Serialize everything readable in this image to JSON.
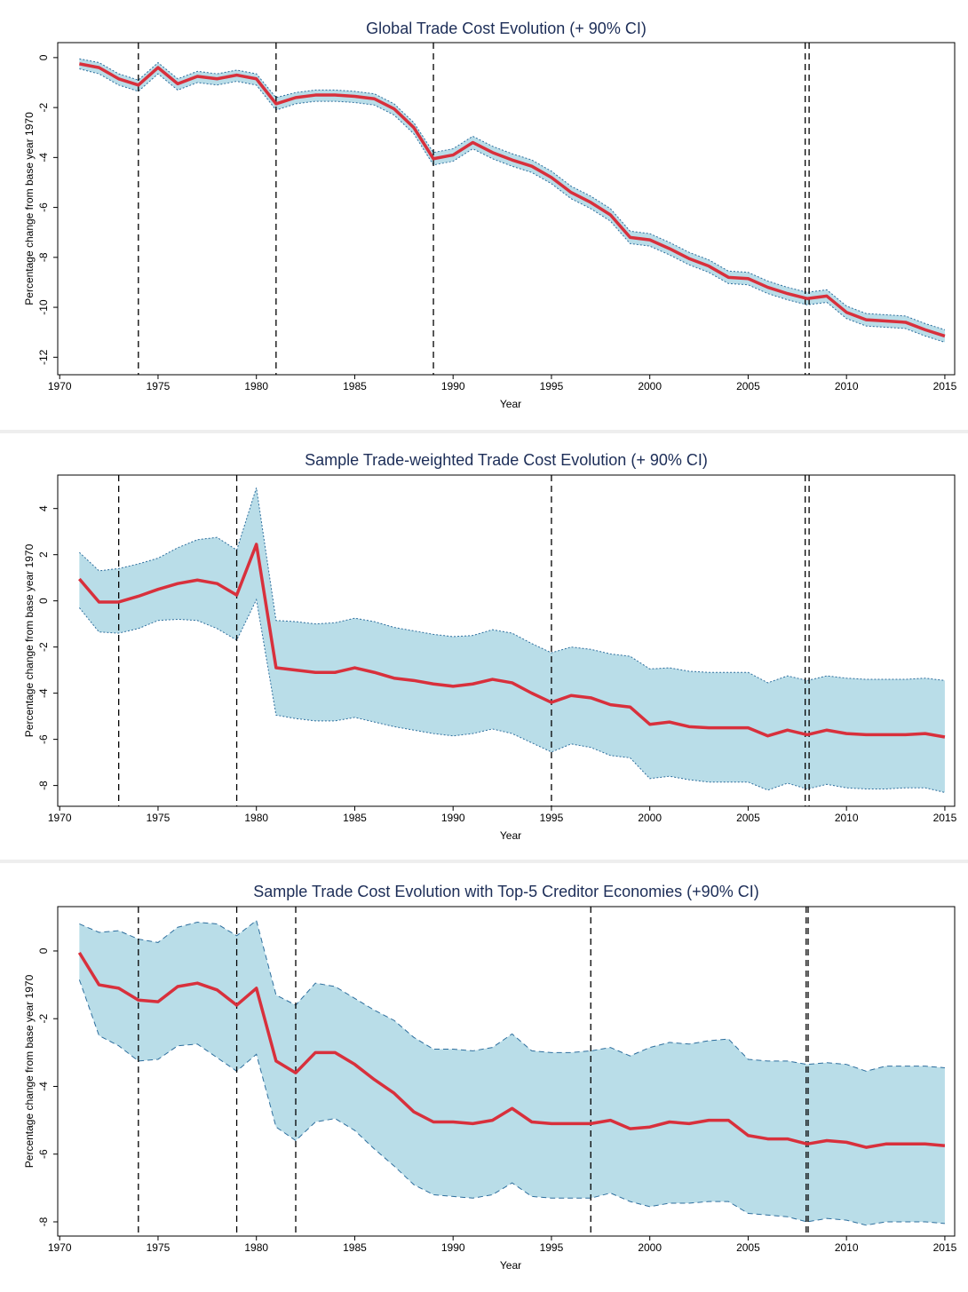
{
  "chart_data": [
    {
      "type": "line",
      "title": "Global Trade Cost Evolution (+ 90% CI)",
      "x_label": "Year",
      "y_label": "Percentage change from base year 1970",
      "x": [
        1971,
        1972,
        1973,
        1974,
        1975,
        1976,
        1977,
        1978,
        1979,
        1980,
        1981,
        1982,
        1983,
        1984,
        1985,
        1986,
        1987,
        1988,
        1989,
        1990,
        1991,
        1992,
        1993,
        1994,
        1995,
        1996,
        1997,
        1998,
        1999,
        2000,
        2001,
        2002,
        2003,
        2004,
        2005,
        2006,
        2007,
        2008,
        2009,
        2010,
        2011,
        2012,
        2013,
        2014,
        2015
      ],
      "values": [
        -0.25,
        -0.4,
        -0.85,
        -1.1,
        -0.4,
        -1.05,
        -0.75,
        -0.85,
        -0.7,
        -0.85,
        -1.85,
        -1.6,
        -1.5,
        -1.5,
        -1.55,
        -1.65,
        -2.05,
        -2.8,
        -4.05,
        -3.9,
        -3.4,
        -3.8,
        -4.1,
        -4.35,
        -4.8,
        -5.4,
        -5.8,
        -6.3,
        -7.2,
        -7.3,
        -7.65,
        -8.05,
        -8.35,
        -8.8,
        -8.85,
        -9.2,
        -9.45,
        -9.65,
        -9.55,
        -10.2,
        -10.5,
        -10.55,
        -10.6,
        -10.9,
        -11.15
      ],
      "ci_upper": [
        -0.05,
        -0.2,
        -0.65,
        -0.9,
        -0.2,
        -0.85,
        -0.55,
        -0.65,
        -0.5,
        -0.65,
        -1.6,
        -1.4,
        -1.3,
        -1.3,
        -1.35,
        -1.45,
        -1.85,
        -2.6,
        -3.8,
        -3.65,
        -3.15,
        -3.55,
        -3.85,
        -4.1,
        -4.55,
        -5.15,
        -5.55,
        -6.05,
        -6.95,
        -7.05,
        -7.4,
        -7.8,
        -8.1,
        -8.55,
        -8.6,
        -8.95,
        -9.2,
        -9.4,
        -9.3,
        -9.95,
        -10.25,
        -10.3,
        -10.35,
        -10.65,
        -10.9
      ],
      "ci_lower": [
        -0.45,
        -0.65,
        -1.1,
        -1.35,
        -0.65,
        -1.3,
        -1.0,
        -1.1,
        -0.95,
        -1.1,
        -2.1,
        -1.85,
        -1.75,
        -1.75,
        -1.8,
        -1.9,
        -2.3,
        -3.05,
        -4.3,
        -4.15,
        -3.65,
        -4.05,
        -4.35,
        -4.6,
        -5.05,
        -5.65,
        -6.05,
        -6.55,
        -7.45,
        -7.55,
        -7.9,
        -8.3,
        -8.6,
        -9.05,
        -9.1,
        -9.45,
        -9.7,
        -9.9,
        -9.8,
        -10.45,
        -10.75,
        -10.8,
        -10.85,
        -11.15,
        -11.4
      ],
      "vlines": [
        1974,
        1981,
        1989,
        2007.9,
        2008.1
      ],
      "xlim": [
        1969.9,
        2015.5
      ],
      "xticks": [
        1970,
        1975,
        1980,
        1985,
        1990,
        1995,
        2000,
        2005,
        2010,
        2015
      ],
      "ylim": [
        -12.7,
        0.6
      ],
      "yticks": [
        -12,
        -10,
        -8,
        -6,
        -4,
        -2,
        0
      ],
      "line_color": "#d8303c",
      "band_color": "#b9dde8",
      "band_edge_color": "#2e6f9e",
      "band_edge_style": "dotted"
    },
    {
      "type": "line",
      "title": "Sample Trade-weighted Trade Cost Evolution (+ 90% CI)",
      "x_label": "Year",
      "y_label": "Percentage change from base year 1970",
      "x": [
        1971,
        1972,
        1973,
        1974,
        1975,
        1976,
        1977,
        1978,
        1979,
        1980,
        1981,
        1982,
        1983,
        1984,
        1985,
        1986,
        1987,
        1988,
        1989,
        1990,
        1991,
        1992,
        1993,
        1994,
        1995,
        1996,
        1997,
        1998,
        1999,
        2000,
        2001,
        2002,
        2003,
        2004,
        2005,
        2006,
        2007,
        2008,
        2009,
        2010,
        2011,
        2012,
        2013,
        2014,
        2015
      ],
      "values": [
        0.95,
        -0.05,
        -0.05,
        0.2,
        0.5,
        0.75,
        0.9,
        0.75,
        0.25,
        2.45,
        -2.9,
        -3.0,
        -3.1,
        -3.1,
        -2.9,
        -3.1,
        -3.35,
        -3.45,
        -3.6,
        -3.7,
        -3.6,
        -3.4,
        -3.55,
        -4.0,
        -4.4,
        -4.1,
        -4.2,
        -4.5,
        -4.6,
        -5.35,
        -5.25,
        -5.45,
        -5.5,
        -5.5,
        -5.5,
        -5.85,
        -5.6,
        -5.8,
        -5.6,
        -5.75,
        -5.8,
        -5.8,
        -5.8,
        -5.75,
        -5.9
      ],
      "ci_upper": [
        2.1,
        1.3,
        1.4,
        1.6,
        1.85,
        2.3,
        2.65,
        2.75,
        2.2,
        4.9,
        -0.85,
        -0.9,
        -1.0,
        -0.95,
        -0.75,
        -0.9,
        -1.15,
        -1.3,
        -1.45,
        -1.55,
        -1.5,
        -1.25,
        -1.4,
        -1.85,
        -2.25,
        -2.0,
        -2.1,
        -2.3,
        -2.4,
        -2.95,
        -2.9,
        -3.05,
        -3.1,
        -3.1,
        -3.1,
        -3.55,
        -3.25,
        -3.45,
        -3.25,
        -3.35,
        -3.4,
        -3.4,
        -3.4,
        -3.35,
        -3.45
      ],
      "ci_lower": [
        -0.3,
        -1.35,
        -1.4,
        -1.2,
        -0.85,
        -0.8,
        -0.85,
        -1.2,
        -1.7,
        0.05,
        -4.95,
        -5.1,
        -5.2,
        -5.2,
        -5.05,
        -5.25,
        -5.45,
        -5.6,
        -5.75,
        -5.85,
        -5.75,
        -5.55,
        -5.75,
        -6.15,
        -6.55,
        -6.2,
        -6.35,
        -6.7,
        -6.8,
        -7.7,
        -7.6,
        -7.75,
        -7.85,
        -7.85,
        -7.85,
        -8.2,
        -7.9,
        -8.15,
        -7.95,
        -8.1,
        -8.15,
        -8.15,
        -8.1,
        -8.1,
        -8.3
      ],
      "vlines": [
        1973,
        1979,
        1995,
        2007.9,
        2008.1
      ],
      "xlim": [
        1969.9,
        2015.5
      ],
      "xticks": [
        1970,
        1975,
        1980,
        1985,
        1990,
        1995,
        2000,
        2005,
        2010,
        2015
      ],
      "ylim": [
        -8.9,
        5.45
      ],
      "yticks": [
        -8,
        -6,
        -4,
        -2,
        0,
        2,
        4
      ],
      "line_color": "#d8303c",
      "band_color": "#b9dde8",
      "band_edge_color": "#2e6f9e",
      "band_edge_style": "dotted"
    },
    {
      "type": "line",
      "title": "Sample Trade Cost Evolution with Top-5 Creditor Economies (+90% CI)",
      "x_label": "Year",
      "y_label": "Percentage change from base year 1970",
      "x": [
        1971,
        1972,
        1973,
        1974,
        1975,
        1976,
        1977,
        1978,
        1979,
        1980,
        1981,
        1982,
        1983,
        1984,
        1985,
        1986,
        1987,
        1988,
        1989,
        1990,
        1991,
        1992,
        1993,
        1994,
        1995,
        1996,
        1997,
        1998,
        1999,
        2000,
        2001,
        2002,
        2003,
        2004,
        2005,
        2006,
        2007,
        2008,
        2009,
        2010,
        2011,
        2012,
        2013,
        2014,
        2015
      ],
      "values": [
        -0.05,
        -1.0,
        -1.1,
        -1.45,
        -1.5,
        -1.05,
        -0.95,
        -1.15,
        -1.6,
        -1.1,
        -3.25,
        -3.6,
        -3.0,
        -3.0,
        -3.35,
        -3.8,
        -4.2,
        -4.75,
        -5.05,
        -5.05,
        -5.1,
        -5.0,
        -4.65,
        -5.05,
        -5.1,
        -5.1,
        -5.1,
        -5.0,
        -5.25,
        -5.2,
        -5.05,
        -5.1,
        -5.0,
        -5.0,
        -5.45,
        -5.55,
        -5.55,
        -5.7,
        -5.6,
        -5.65,
        -5.8,
        -5.7,
        -5.7,
        -5.7,
        -5.75
      ],
      "ci_upper": [
        0.8,
        0.55,
        0.6,
        0.35,
        0.25,
        0.7,
        0.85,
        0.8,
        0.45,
        0.9,
        -1.3,
        -1.6,
        -0.95,
        -1.05,
        -1.4,
        -1.75,
        -2.05,
        -2.55,
        -2.9,
        -2.9,
        -2.95,
        -2.85,
        -2.45,
        -2.95,
        -3.0,
        -3.0,
        -2.95,
        -2.85,
        -3.1,
        -2.85,
        -2.7,
        -2.75,
        -2.65,
        -2.6,
        -3.2,
        -3.25,
        -3.25,
        -3.35,
        -3.3,
        -3.35,
        -3.55,
        -3.4,
        -3.4,
        -3.4,
        -3.45
      ],
      "ci_lower": [
        -0.85,
        -2.5,
        -2.8,
        -3.25,
        -3.2,
        -2.8,
        -2.75,
        -3.15,
        -3.55,
        -3.05,
        -5.2,
        -5.6,
        -5.05,
        -4.95,
        -5.3,
        -5.85,
        -6.35,
        -6.9,
        -7.2,
        -7.25,
        -7.3,
        -7.2,
        -6.85,
        -7.25,
        -7.3,
        -7.3,
        -7.3,
        -7.15,
        -7.4,
        -7.55,
        -7.45,
        -7.45,
        -7.4,
        -7.4,
        -7.75,
        -7.8,
        -7.85,
        -8.0,
        -7.9,
        -7.95,
        -8.1,
        -8.0,
        -8.0,
        -8.0,
        -8.05
      ],
      "vlines": [
        1974,
        1979,
        1982,
        1997,
        2007.95,
        2008.05
      ],
      "xlim": [
        1969.9,
        2015.5
      ],
      "xticks": [
        1970,
        1975,
        1980,
        1985,
        1990,
        1995,
        2000,
        2005,
        2010,
        2015
      ],
      "ylim": [
        -8.42,
        1.31
      ],
      "yticks": [
        -8,
        -6,
        -4,
        -2,
        0
      ],
      "line_color": "#d8303c",
      "band_color": "#b9dde8",
      "band_edge_color": "#2e6f9e",
      "band_edge_style": "dashed"
    }
  ]
}
